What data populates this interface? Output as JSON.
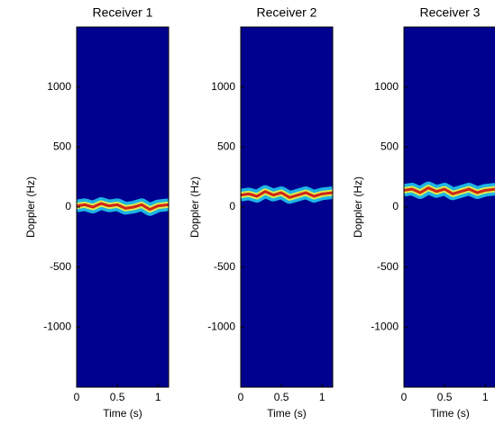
{
  "chart_data": [
    {
      "type": "spectrogram",
      "title": "Receiver 1",
      "xlabel": "Time (s)",
      "ylabel": "Doppler (Hz)",
      "xlim": [
        0,
        1.13
      ],
      "ylim": [
        -1500,
        1500
      ],
      "xticks": [
        0,
        0.5,
        1
      ],
      "yticks": [
        -1000,
        -500,
        0,
        500,
        1000
      ],
      "background": "#00008f",
      "trace_colors": [
        "#20c8f0",
        "#f0f040",
        "#d01010"
      ],
      "x": [
        0,
        0.1,
        0.2,
        0.3,
        0.4,
        0.5,
        0.6,
        0.7,
        0.8,
        0.9,
        1.0,
        1.13
      ],
      "values": [
        10,
        20,
        0,
        30,
        10,
        20,
        -10,
        0,
        20,
        -20,
        10,
        20
      ]
    },
    {
      "type": "spectrogram",
      "title": "Receiver 2",
      "xlabel": "Time (s)",
      "ylabel": "Doppler (Hz)",
      "xlim": [
        0,
        1.13
      ],
      "ylim": [
        -1500,
        1500
      ],
      "xticks": [
        0,
        0.5,
        1
      ],
      "yticks": [
        -1000,
        -500,
        0,
        500,
        1000
      ],
      "background": "#00008f",
      "trace_colors": [
        "#20c8f0",
        "#f0f040",
        "#d01010"
      ],
      "x": [
        0,
        0.1,
        0.2,
        0.3,
        0.4,
        0.5,
        0.6,
        0.7,
        0.8,
        0.9,
        1.0,
        1.13
      ],
      "values": [
        100,
        110,
        90,
        130,
        100,
        120,
        80,
        100,
        120,
        90,
        110,
        120
      ]
    },
    {
      "type": "spectrogram",
      "title": "Receiver 3",
      "xlabel": "Time (s)",
      "ylabel": "Doppler (Hz)",
      "xlim": [
        0,
        1.13
      ],
      "ylim": [
        -1500,
        1500
      ],
      "xticks": [
        0,
        0.5,
        1
      ],
      "yticks": [
        -1000,
        -500,
        0,
        500,
        1000
      ],
      "background": "#00008f",
      "trace_colors": [
        "#20c8f0",
        "#f0f040",
        "#d01010"
      ],
      "x": [
        0,
        0.1,
        0.2,
        0.3,
        0.4,
        0.5,
        0.6,
        0.7,
        0.8,
        0.9,
        1.0,
        1.13
      ],
      "values": [
        140,
        150,
        120,
        160,
        130,
        150,
        110,
        130,
        150,
        120,
        140,
        150
      ]
    }
  ]
}
